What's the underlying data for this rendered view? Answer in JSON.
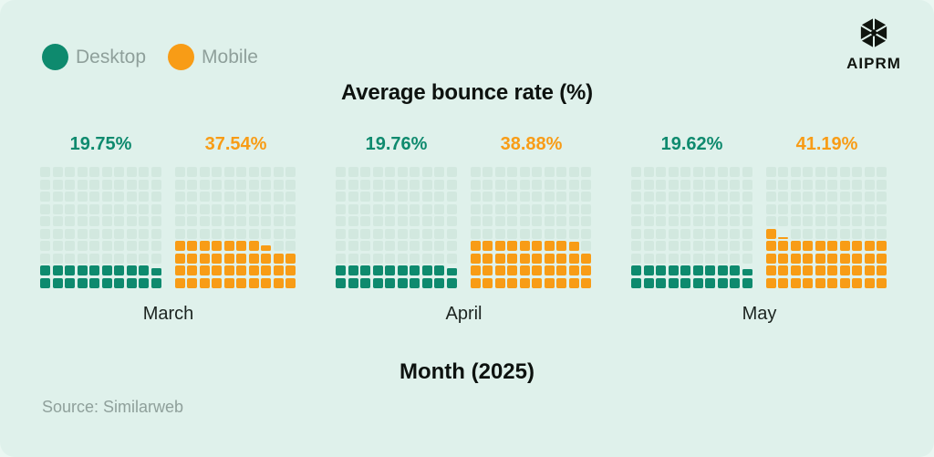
{
  "title": "Average bounce rate (%)",
  "xaxis_label": "Month (2025)",
  "source": "Source: Similarweb",
  "brand": {
    "name": "AIPRM",
    "logo_icon": "aiprm-faceted-cube-icon"
  },
  "legend": {
    "items": [
      {
        "label": "Desktop",
        "color": "#0e8a6e"
      },
      {
        "label": "Mobile",
        "color": "#f89c16"
      }
    ]
  },
  "colors": {
    "desktop": "#0e8a6e",
    "mobile": "#f89c16",
    "empty_cell": "#d2e8df",
    "card_background": "#dff1eb",
    "page_background": "#eaf7f2",
    "muted_text": "#8fa09b",
    "dark_text": "#0d120f"
  },
  "chart_data": {
    "type": "waffle",
    "description": "Each 10x10 waffle grid equals 100%; one square equals 1%; squares fill left-to-right, bottom-to-top; fractional remainder drawn as a partial-height square",
    "title": "Average bounce rate (%)",
    "xlabel": "Month (2025)",
    "categories": [
      "March",
      "April",
      "May"
    ],
    "series": [
      {
        "name": "Desktop",
        "color": "#0e8a6e",
        "values": [
          19.75,
          19.76,
          19.62
        ],
        "labels": [
          "19.75%",
          "19.76%",
          "19.62%"
        ]
      },
      {
        "name": "Mobile",
        "color": "#f89c16",
        "values": [
          37.54,
          38.88,
          41.19
        ],
        "labels": [
          "37.54%",
          "38.88%",
          "41.19%"
        ]
      }
    ],
    "ylim": [
      0,
      100
    ],
    "grid": {
      "rows": 10,
      "cols": 10,
      "unit_percent": 1
    },
    "legend_position": "top-left",
    "source": "Similarweb"
  }
}
